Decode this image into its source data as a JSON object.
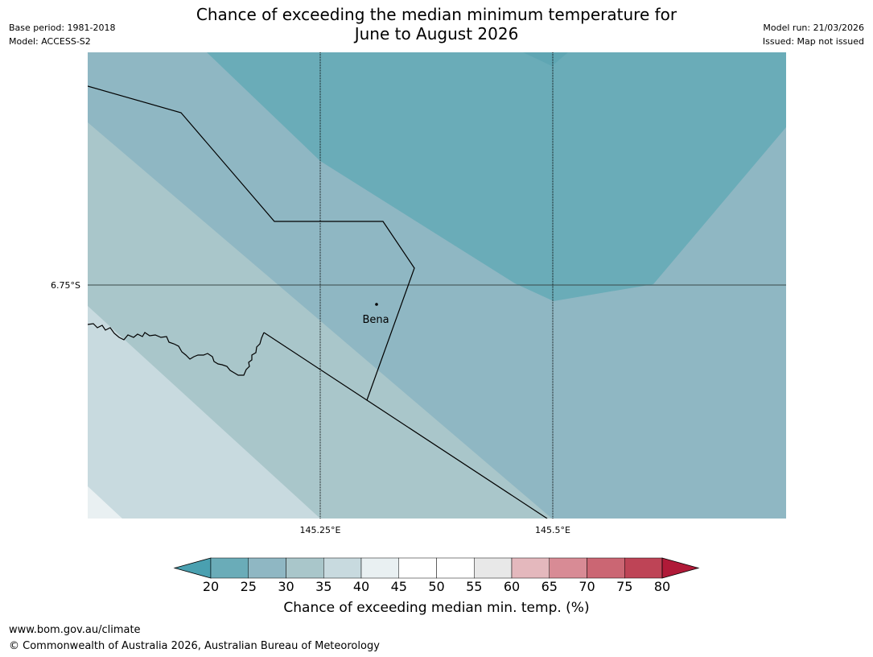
{
  "title": {
    "line1": "Chance of exceeding the median minimum temperature for",
    "line2": "June to August 2026"
  },
  "meta": {
    "base_period": "Base period: 1981-2018",
    "model": "Model: ACCESS-S2",
    "model_run": "Model run: 21/03/2026",
    "issued": "Issued: Map not issued"
  },
  "map": {
    "lat_label": "6.75°S",
    "lon_labels": [
      "145.25°E",
      "145.5°E"
    ],
    "place_name": "Bena"
  },
  "colorbar": {
    "tick_labels": [
      "20",
      "25",
      "30",
      "35",
      "40",
      "45",
      "50",
      "55",
      "60",
      "65",
      "70",
      "75",
      "80"
    ],
    "label": "Chance of exceeding median min. temp. (%)",
    "colors": {
      "lt20": "#4aa0b0",
      "20_25": "#6aacb8",
      "25_30": "#8fb7c3",
      "30_35": "#a9c6ca",
      "35_40": "#c8dadf",
      "40_45": "#e9f0f2",
      "45_50": "#ffffff",
      "50_55": "#ffffff",
      "55_60": "#e8e8e8",
      "60_65": "#e4b8bd",
      "65_70": "#d88b95",
      "70_75": "#cb6673",
      "75_80": "#be4456",
      "gt80": "#b01a38"
    }
  },
  "footer": {
    "url": "www.bom.gov.au/climate",
    "copyright": "© Commonwealth of Australia 2026, Australian Bureau of Meteorology"
  }
}
